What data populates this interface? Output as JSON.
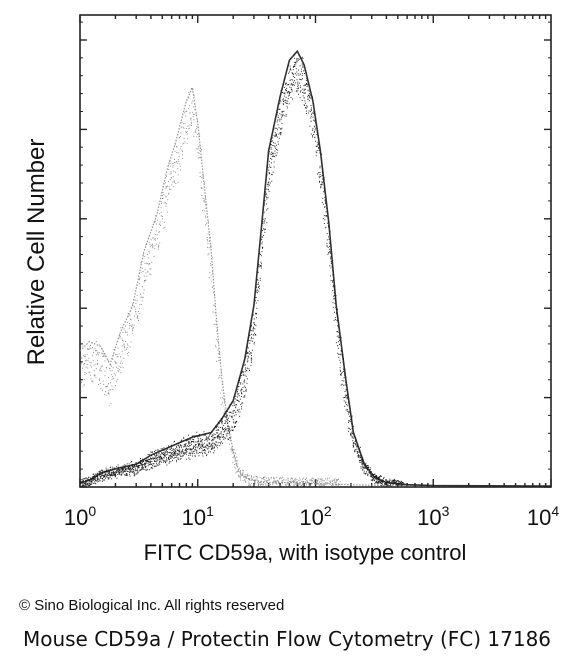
{
  "chart_data": {
    "type": "area",
    "title": "",
    "xlabel": "FITC CD59a, with isotype control",
    "ylabel": "Relative Cell Number",
    "x_scale": "log10",
    "xlim": [
      1,
      10000
    ],
    "ylim": [
      0,
      100
    ],
    "x_ticks": [
      {
        "base": "10",
        "exp": "0"
      },
      {
        "base": "10",
        "exp": "1"
      },
      {
        "base": "10",
        "exp": "2"
      },
      {
        "base": "10",
        "exp": "3"
      },
      {
        "base": "10",
        "exp": "4"
      }
    ],
    "series": [
      {
        "role": "isotype control",
        "color": "#8a8a8a",
        "points": [
          [
            1,
            30
          ],
          [
            1.2,
            32
          ],
          [
            1.5,
            31
          ],
          [
            1.8,
            27
          ],
          [
            2.2,
            34
          ],
          [
            2.8,
            40
          ],
          [
            3.5,
            52
          ],
          [
            4.5,
            60
          ],
          [
            5.5,
            70
          ],
          [
            6.5,
            76
          ],
          [
            8,
            85
          ],
          [
            9,
            88
          ],
          [
            10,
            80
          ],
          [
            11.5,
            65
          ],
          [
            13,
            52
          ],
          [
            14.5,
            36
          ],
          [
            16,
            24
          ],
          [
            18,
            14
          ],
          [
            20,
            8
          ],
          [
            22,
            4
          ],
          [
            25,
            2
          ],
          [
            30,
            1.5
          ],
          [
            40,
            1
          ],
          [
            60,
            1
          ],
          [
            100,
            0.8
          ],
          [
            200,
            0.5
          ],
          [
            400,
            0.3
          ],
          [
            1000,
            0.2
          ],
          [
            10000,
            0.2
          ]
        ]
      },
      {
        "role": "FITC CD59a",
        "color": "#1c1c1c",
        "points": [
          [
            1,
            0.8
          ],
          [
            1.2,
            1.5
          ],
          [
            1.5,
            3
          ],
          [
            2,
            4
          ],
          [
            3,
            5
          ],
          [
            4,
            7
          ],
          [
            6,
            9
          ],
          [
            9,
            11
          ],
          [
            13,
            12
          ],
          [
            16,
            15
          ],
          [
            20,
            19
          ],
          [
            25,
            28
          ],
          [
            30,
            40
          ],
          [
            35,
            58
          ],
          [
            40,
            74
          ],
          [
            50,
            86
          ],
          [
            60,
            94
          ],
          [
            70,
            96
          ],
          [
            80,
            93
          ],
          [
            95,
            85
          ],
          [
            110,
            74
          ],
          [
            130,
            58
          ],
          [
            150,
            40
          ],
          [
            180,
            24
          ],
          [
            210,
            12
          ],
          [
            260,
            5
          ],
          [
            320,
            2
          ],
          [
            400,
            1
          ],
          [
            600,
            0.5
          ],
          [
            1000,
            0.3
          ],
          [
            10000,
            0.2
          ]
        ]
      }
    ]
  },
  "footer": {
    "copyright": "© Sino Biological Inc. All rights reserved",
    "caption": "Mouse CD59a / Protectin Flow Cytometry (FC) 17186"
  }
}
